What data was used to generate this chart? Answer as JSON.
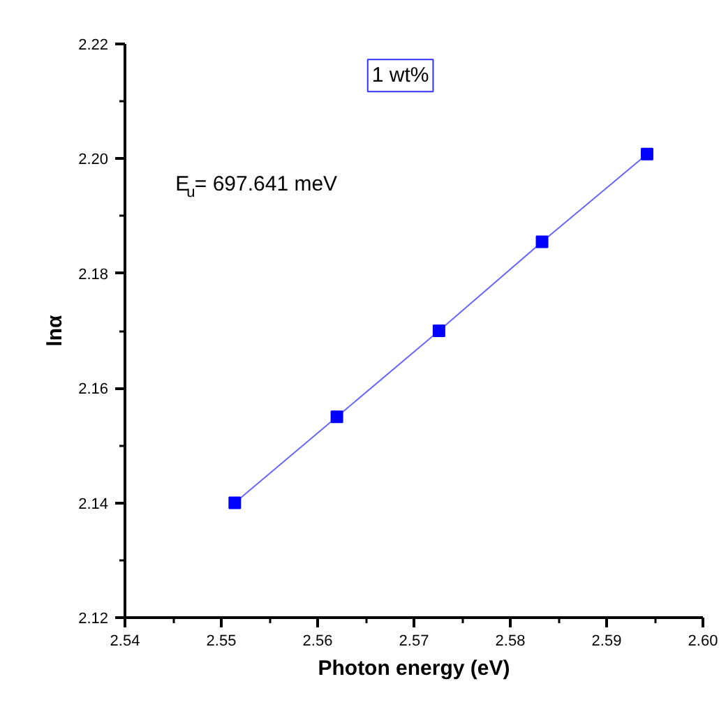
{
  "chart_data": {
    "type": "line",
    "xlabel": "Photon energy (eV)",
    "ylabel": "lnα",
    "x": [
      2.5514,
      2.562,
      2.5726,
      2.5833,
      2.5942
    ],
    "series": [
      {
        "color": "#0000ff",
        "values": [
          2.14,
          2.155,
          2.17,
          2.1855,
          2.2008
        ]
      }
    ],
    "marker": "square",
    "line_style": "solid",
    "xlim": [
      2.54,
      2.6
    ],
    "xticks": [
      2.54,
      2.55,
      2.56,
      2.57,
      2.58,
      2.59,
      {
        "value": 2.6,
        "label": "2.60"
      }
    ],
    "ylim": [
      2.12,
      2.22
    ],
    "yticks": [
      2.12,
      2.14,
      2.16,
      2.18,
      {
        "value": 2.2,
        "label": "2.20"
      },
      2.22
    ],
    "annotations": [
      "1 wt%",
      "E$_{u}$= 697.641 meV"
    ],
    "grid": false
  }
}
